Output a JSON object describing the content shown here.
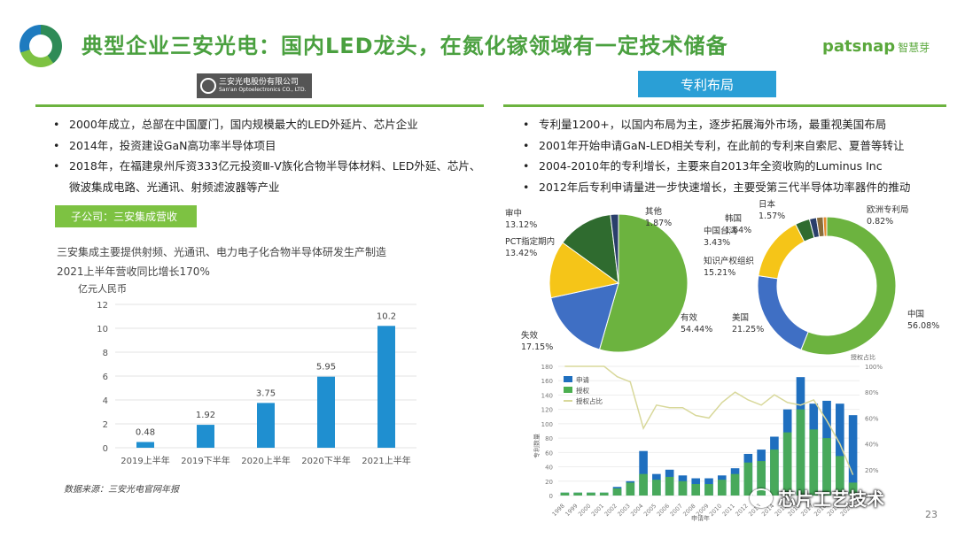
{
  "header": {
    "title": "典型企业三安光电：国内LED龙头，在氮化镓领域有一定技术储备",
    "brand": "patsnap",
    "brand_cn": "智慧芽"
  },
  "company_logo": {
    "cn": "三安光电股份有限公司",
    "en": "San'an Optoelectronics CO., LTD."
  },
  "left_bullets": [
    "2000年成立，总部在中国厦门，国内规模最大的LED外延片、芯片企业",
    "2014年，投资建设GaN高功率半导体项目",
    "2018年，在福建泉州斥资333亿元投资Ⅲ-Ⅴ族化合物半导体材料、LED外延、芯片、微波集成电路、光通讯、射频滤波器等产业"
  ],
  "subsidiary_label": "子公司：三安集成营收",
  "subsidiary_desc": [
    "三安集成主要提供射频、光通讯、电力电子化合物半导体研发生产制造",
    "2021上半年营收同比增长170%"
  ],
  "source": "数据来源：三安光电官网年报",
  "patent_tab": "专利布局",
  "right_bullets": [
    "专利量1200+，以国内布局为主，逐步拓展海外市场，最重视美国布局",
    "2001年开始申请GaN-LED相关专利，在此前的专利来自索尼、夏普等转让",
    "2004-2010年的专利增长，主要来自2013年全资收购的Luminus Inc",
    "2012年后专利申请量进一步快速增长，主要受第三代半导体功率器件的推动"
  ],
  "watermark": "芯片工艺技术",
  "page_number": "23",
  "colors": {
    "green": "#6cb33f",
    "title_green": "#4aa03f",
    "blue": "#2a9fd6",
    "bar_blue": "#1f8fd0"
  },
  "chart_data": [
    {
      "type": "bar",
      "ylabel": "亿元人民币",
      "categories": [
        "2019上半年",
        "2019下半年",
        "2020上半年",
        "2020下半年",
        "2021上半年"
      ],
      "values": [
        0.48,
        1.92,
        3.75,
        5.95,
        10.2
      ],
      "value_labels": [
        "0.48",
        "1.92",
        "3.75",
        "5.95",
        "10.2"
      ],
      "ylim": [
        0,
        12
      ],
      "yticks": [
        "0",
        "2",
        "4",
        "6",
        "8",
        "10",
        "12"
      ],
      "grid": true
    },
    {
      "type": "pie",
      "slices": [
        {
          "label": "有效",
          "value": 54.44,
          "display": "54.44%",
          "color": "#6cb33f"
        },
        {
          "label": "失效",
          "value": 17.15,
          "display": "17.15%",
          "color": "#3f6fc4"
        },
        {
          "label": "PCT指定期内",
          "value": 13.42,
          "display": "13.42%",
          "color": "#f5c518"
        },
        {
          "label": "审中",
          "value": 13.12,
          "display": "13.12%",
          "color": "#2f6b2f"
        },
        {
          "label": "其他",
          "value": 1.87,
          "display": "1.87%",
          "color": "#2a3f6b"
        }
      ]
    },
    {
      "type": "pie",
      "donut": true,
      "slices": [
        {
          "label": "中国",
          "value": 56.08,
          "display": "56.08%",
          "color": "#6cb33f"
        },
        {
          "label": "美国",
          "value": 21.25,
          "display": "21.25%",
          "color": "#3f6fc4"
        },
        {
          "label": "知识产权组织",
          "value": 15.21,
          "display": "15.21%",
          "color": "#f5c518"
        },
        {
          "label": "中国台湾",
          "value": 3.43,
          "display": "3.43%",
          "color": "#2f6b2f"
        },
        {
          "label": "韩国",
          "value": 1.64,
          "display": "1.64%",
          "color": "#2a3f6b"
        },
        {
          "label": "日本",
          "value": 1.57,
          "display": "1.57%",
          "color": "#8a6d3b"
        },
        {
          "label": "欧洲专利局",
          "value": 0.82,
          "display": "0.82%",
          "color": "#e58a2e"
        }
      ]
    },
    {
      "type": "bar",
      "ylabel": "专利数量",
      "xlabel": "申请年",
      "y2label": "授权占比",
      "x": [
        "1998",
        "1999",
        "2000",
        "2001",
        "2002",
        "2003",
        "2004",
        "2005",
        "2006",
        "2007",
        "2008",
        "2009",
        "2010",
        "2011",
        "2012",
        "2013",
        "2014",
        "2015",
        "2016",
        "2017",
        "2018",
        "2019",
        "2020"
      ],
      "series": [
        {
          "name": "申请",
          "values": [
            4,
            4,
            4,
            4,
            12,
            20,
            62,
            30,
            36,
            28,
            24,
            24,
            28,
            38,
            58,
            64,
            82,
            120,
            165,
            128,
            132,
            128,
            112
          ]
        },
        {
          "name": "授权",
          "values": [
            4,
            4,
            4,
            4,
            10,
            18,
            30,
            22,
            26,
            20,
            16,
            16,
            22,
            30,
            46,
            48,
            64,
            88,
            120,
            92,
            80,
            55,
            18
          ]
        }
      ],
      "line": {
        "name": "授权占比",
        "values": [
          100,
          100,
          100,
          100,
          92,
          88,
          52,
          70,
          68,
          68,
          62,
          60,
          72,
          80,
          74,
          70,
          78,
          72,
          70,
          74,
          58,
          40,
          16
        ]
      },
      "ylim": [
        0,
        180
      ],
      "yticks": [
        "0",
        "20",
        "40",
        "60",
        "80",
        "100",
        "120",
        "140",
        "160",
        "180"
      ],
      "y2lim": [
        0,
        100
      ],
      "y2ticks": [
        "0%",
        "20%",
        "40%",
        "60%",
        "80%",
        "100%"
      ]
    }
  ]
}
